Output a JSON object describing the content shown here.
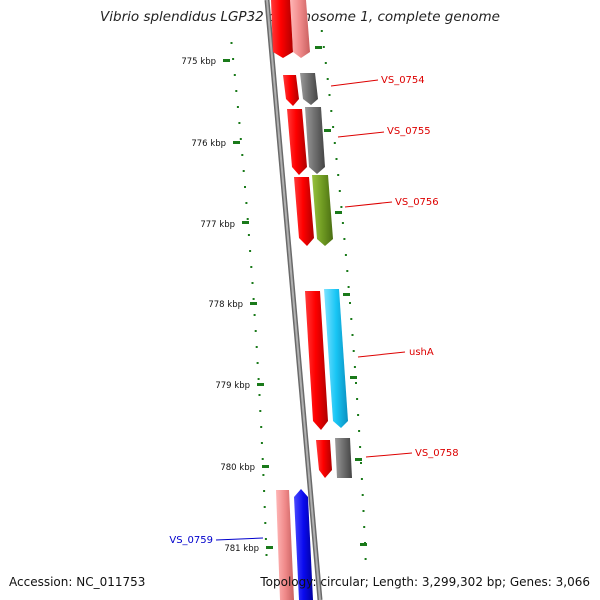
{
  "title": "Vibrio splendidus LGP32 chromosome 1, complete genome",
  "footer": {
    "accession": "Accession: NC_011753",
    "summary": "Topology: circular; Length: 3,299,302 bp; Genes: 3,066"
  },
  "scale": {
    "unit": "kbp",
    "ticks": [
      775,
      776,
      777,
      778,
      779,
      780,
      781
    ]
  },
  "gene_labels": [
    {
      "name": "VS_0754",
      "color": "#dd0000"
    },
    {
      "name": "VS_0755",
      "color": "#dd0000"
    },
    {
      "name": "VS_0756",
      "color": "#dd0000"
    },
    {
      "name": "ushA",
      "color": "#dd0000"
    },
    {
      "name": "VS_0758",
      "color": "#dd0000"
    },
    {
      "name": "VS_0759",
      "color": "#0000cc"
    }
  ],
  "colors": {
    "backbone": "#8a8a8a",
    "ruler": "#1a7a1a",
    "gene_red": "#ff0000",
    "gene_pink": "#f08a8a",
    "gene_gray": "#6e6e6e",
    "gene_olive": "#6f9a22",
    "gene_cyan": "#19c6f5",
    "gene_blue": "#0a0aee"
  }
}
